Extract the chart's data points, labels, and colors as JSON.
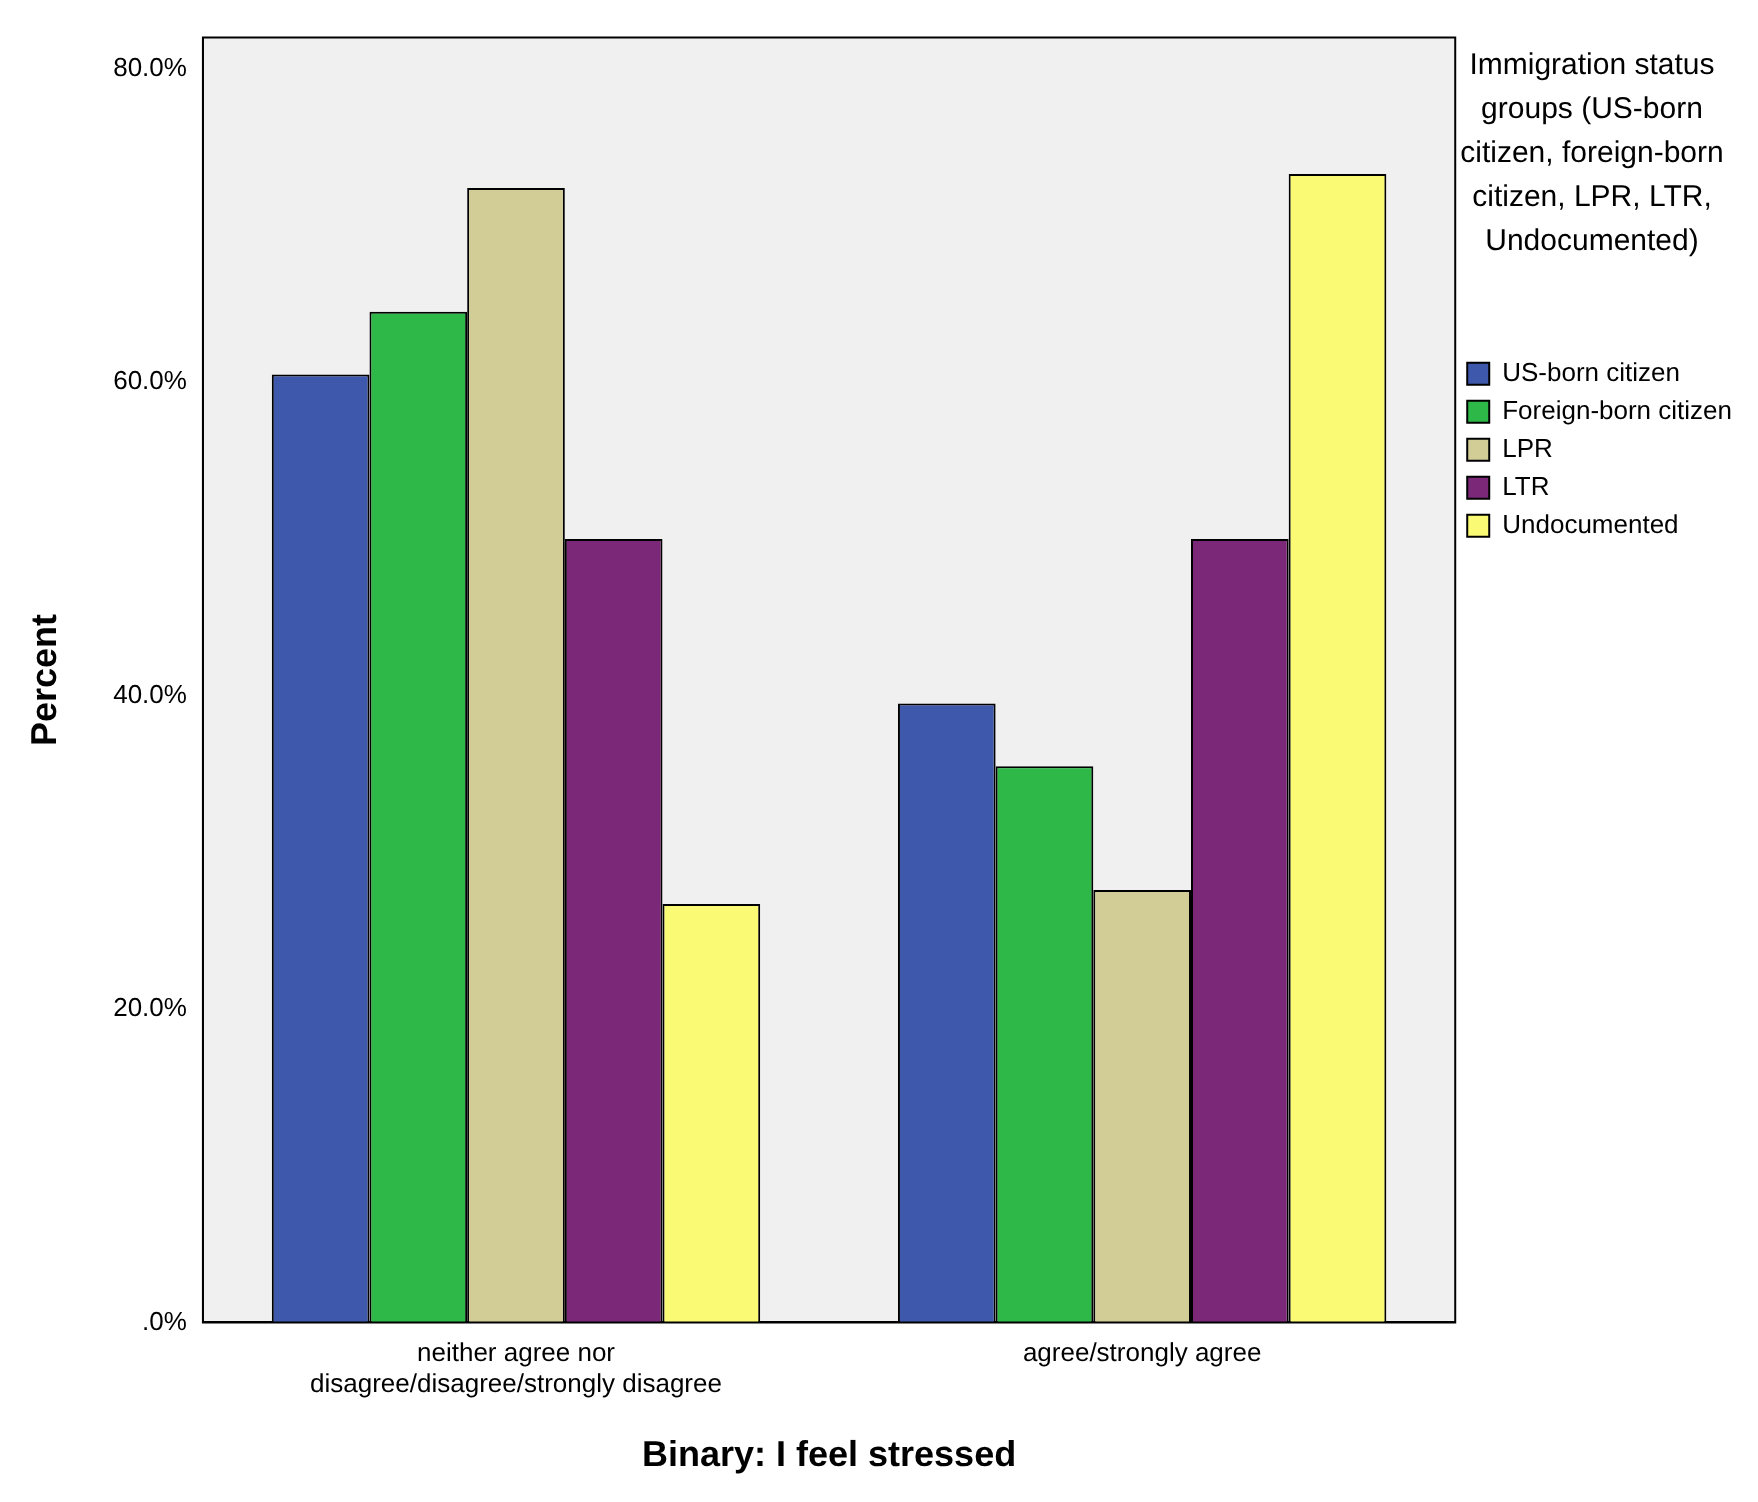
{
  "chart_data": {
    "type": "bar",
    "xlabel": "Binary: I feel stressed",
    "ylabel": "Percent",
    "legend_title": "Immigration status groups (US-born citizen, foreign-born citizen, LPR, LTR, Undocumented)",
    "categories": [
      "neither agree nor disagree/disagree/strongly disagree",
      "agree/strongly agree"
    ],
    "series": [
      {
        "name": "US-born citizen",
        "color": "#3e58ac",
        "values": [
          60.5,
          39.5
        ]
      },
      {
        "name": "Foreign-born citizen",
        "color": "#2eb848",
        "values": [
          64.5,
          35.5
        ]
      },
      {
        "name": "LPR",
        "color": "#d2cc96",
        "values": [
          72.4,
          27.6
        ]
      },
      {
        "name": "LTR",
        "color": "#7b2878",
        "values": [
          50,
          50
        ]
      },
      {
        "name": "Undocumented",
        "color": "#fafa74",
        "values": [
          26.7,
          73.3
        ]
      }
    ],
    "ylim": [
      0,
      82
    ],
    "yticks": [
      {
        "value": 0,
        "label": ".0%"
      },
      {
        "value": 20,
        "label": "20.0%"
      },
      {
        "value": 40,
        "label": "40.0%"
      },
      {
        "value": 60,
        "label": "60.0%"
      },
      {
        "value": 80,
        "label": "80.0%"
      }
    ],
    "grid": false,
    "legend": "top right"
  }
}
